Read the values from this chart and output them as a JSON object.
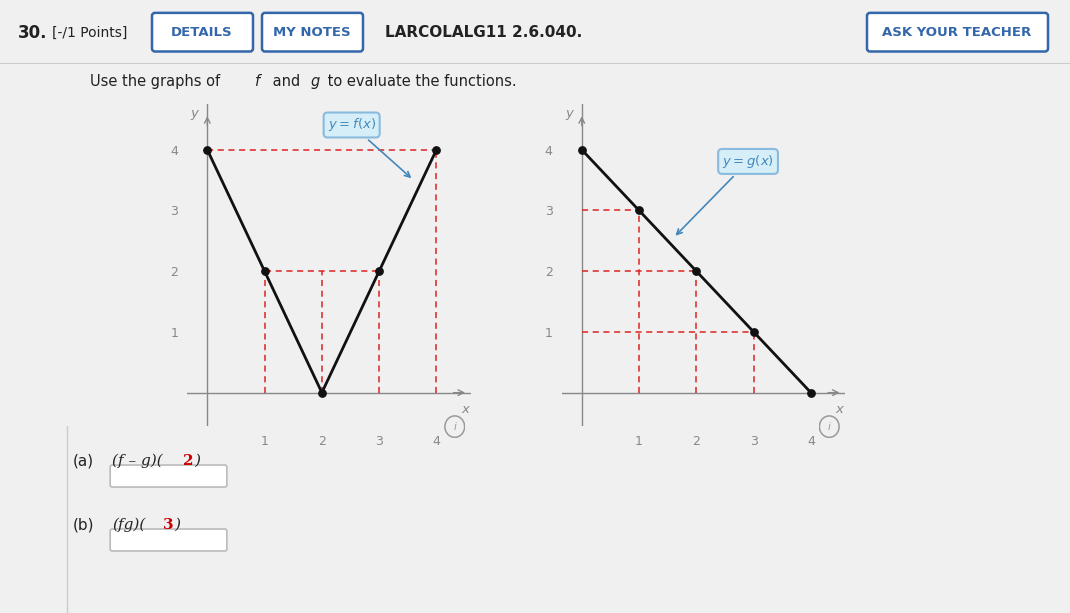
{
  "btn_details": "DETAILS",
  "btn_notes": "MY NOTES",
  "header_text": "LARCOLALG11 2.6.040.",
  "btn_teacher": "ASK YOUR TEACHER",
  "f_points_x": [
    0,
    1,
    2,
    3,
    4
  ],
  "f_points_y": [
    4,
    2,
    0,
    2,
    4
  ],
  "g_points_x": [
    0,
    1,
    2,
    3,
    4
  ],
  "g_points_y": [
    4,
    3,
    2,
    1,
    0
  ],
  "bg_color": "#f0f0f0",
  "header_bg": "#ffffff",
  "graph_bg": "#ffffff",
  "line_color": "#111111",
  "dashed_color": "#dd2222",
  "dot_color": "#111111",
  "label_box_facecolor": "#d6eef8",
  "label_box_edgecolor": "#88bbdd",
  "label_text_color": "#4488bb",
  "highlight_color": "#cc0000",
  "axis_color": "#888888",
  "tick_color": "#888888",
  "header_border": "#cccccc",
  "btn_color": "#3366aa"
}
